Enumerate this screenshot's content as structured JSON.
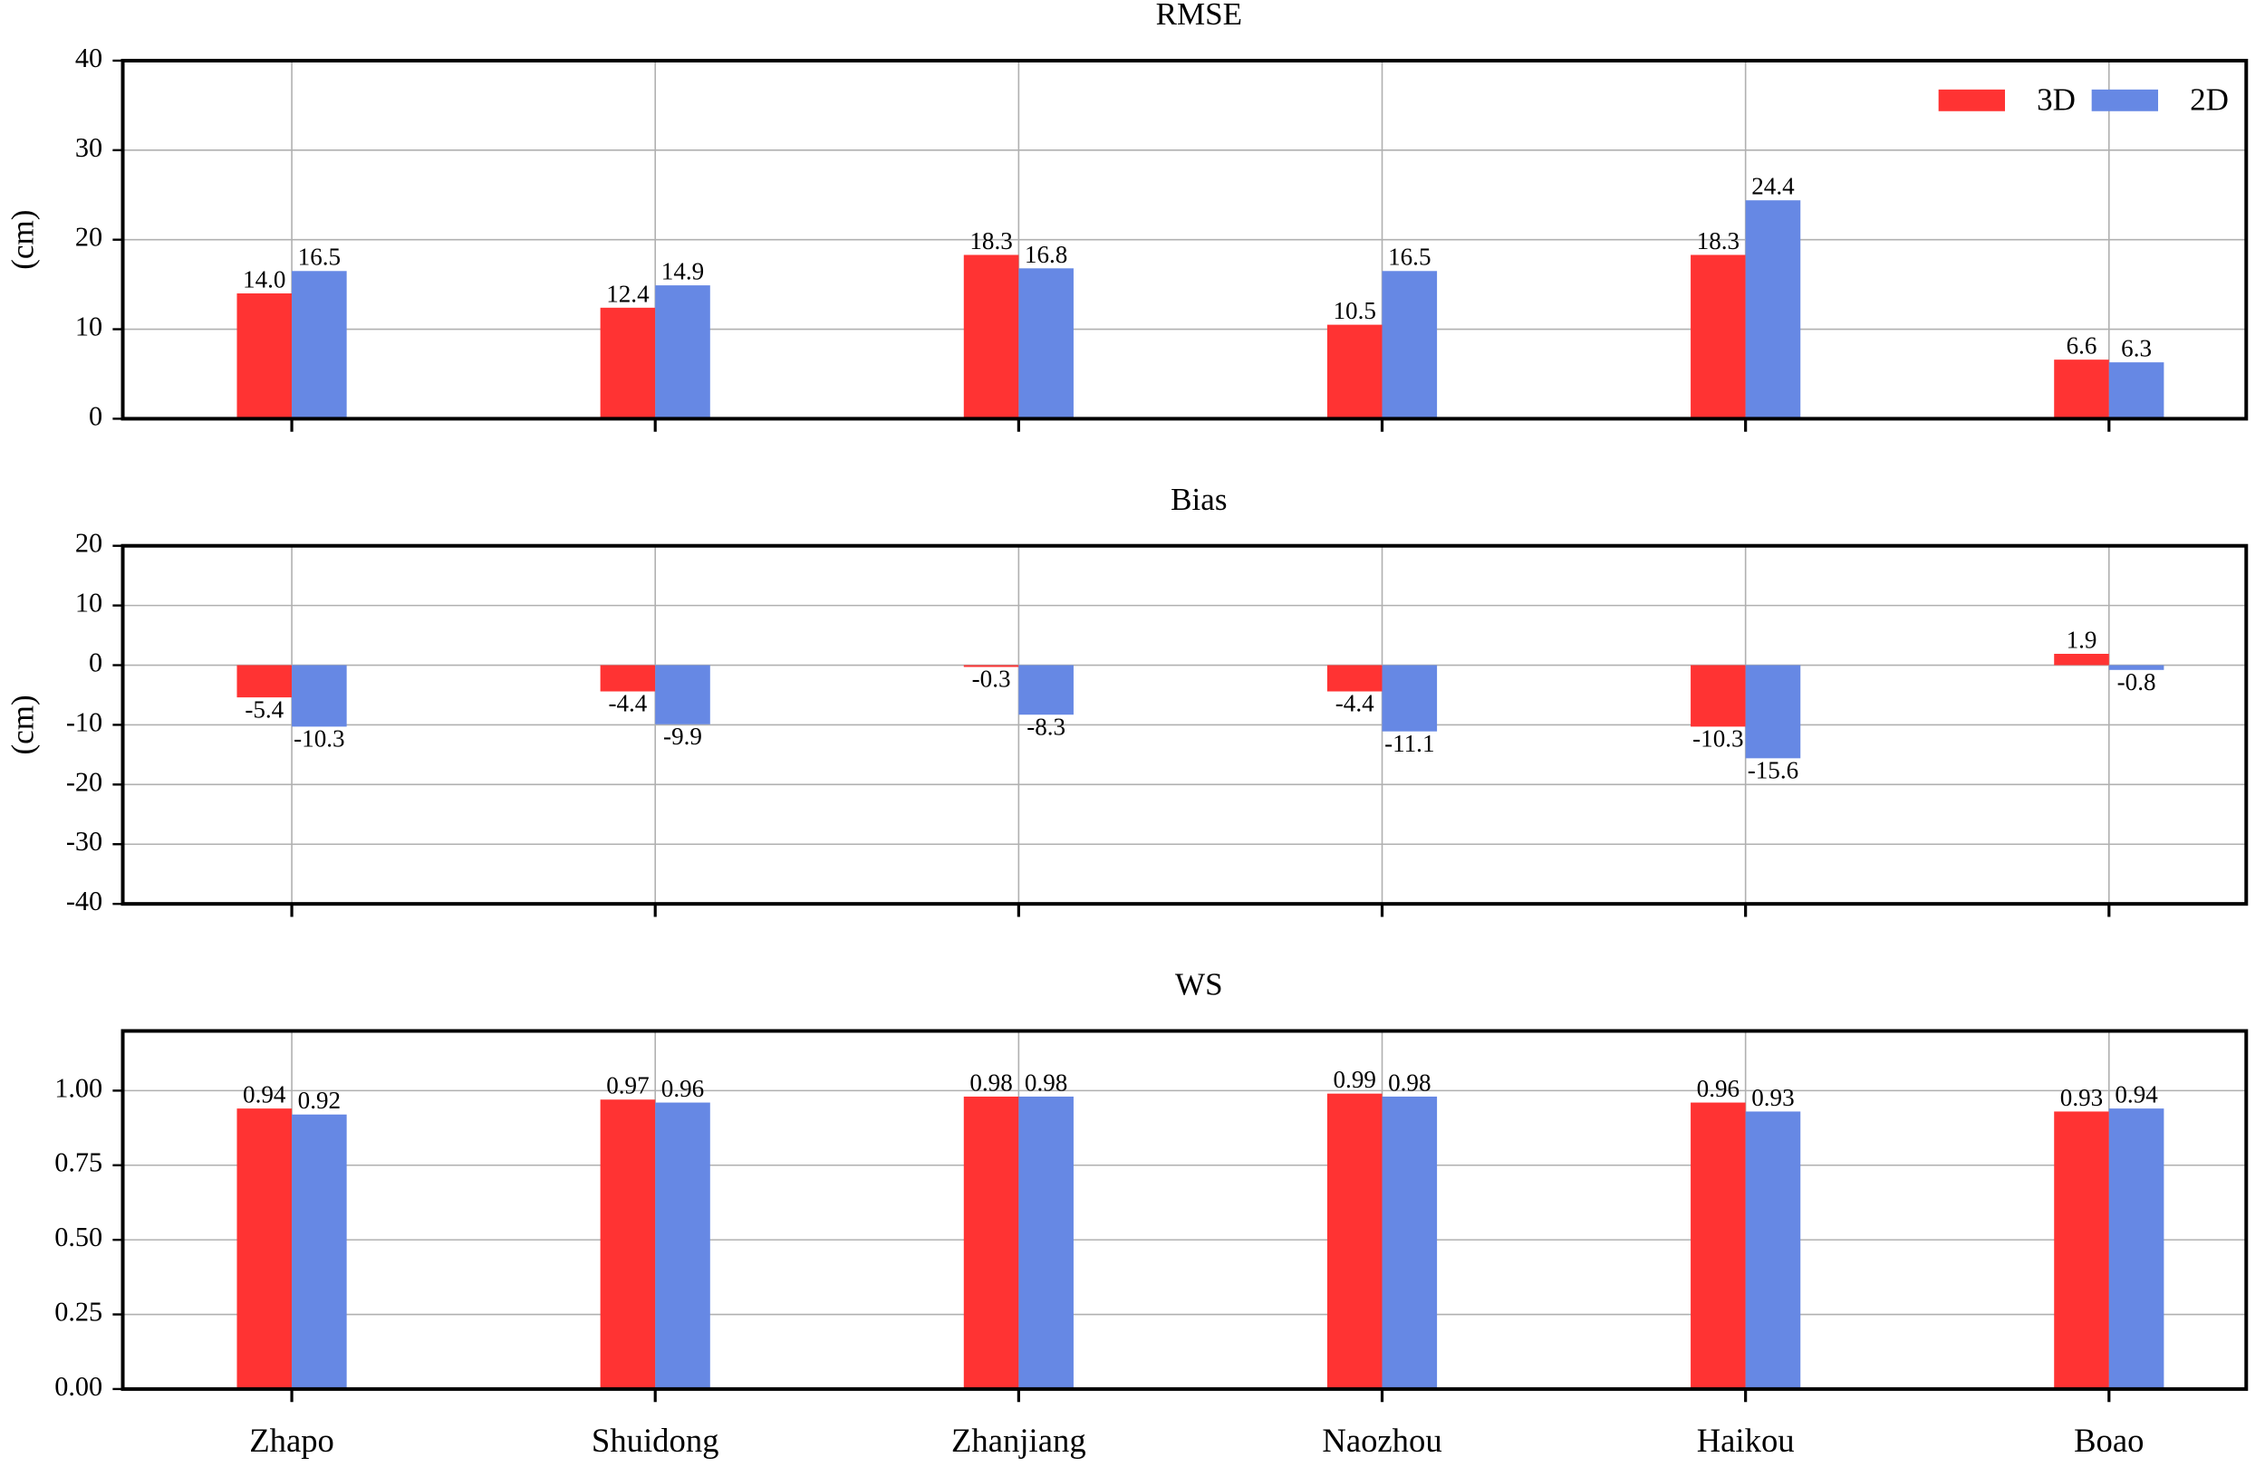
{
  "chart_data": [
    {
      "type": "bar",
      "title": "RMSE",
      "ylabel": "(cm)",
      "series": [
        {
          "name": "3D",
          "color": "#ff3333",
          "values": [
            14.0,
            12.4,
            18.3,
            10.5,
            18.3,
            6.6
          ],
          "value_labels": [
            "14.0",
            "12.4",
            "18.3",
            "10.5",
            "18.3",
            "6.6"
          ]
        },
        {
          "name": "2D",
          "color": "#6688e4",
          "values": [
            16.5,
            14.9,
            16.8,
            16.5,
            24.4,
            6.3
          ]
        }
      ],
      "ylim": [
        0,
        40
      ],
      "yticks": [
        0,
        10,
        20,
        30,
        40
      ],
      "grid": true,
      "legend": "upper right"
    },
    {
      "type": "bar",
      "title": "Bias",
      "ylabel": "(cm)",
      "series": [
        {
          "color": "#ff3333",
          "values": [
            -5.4,
            -4.4,
            -0.3,
            -4.4,
            -10.3,
            1.9
          ]
        },
        {
          "color": "#6688e4",
          "values": [
            -10.3,
            -9.9,
            -8.3,
            -11.1,
            -15.6,
            -0.8
          ]
        }
      ],
      "ylim": [
        -40,
        20
      ],
      "yticks": [
        -40,
        -30,
        -20,
        -10,
        0,
        10,
        20
      ],
      "grid": true
    },
    {
      "type": "bar",
      "title": "WS",
      "categories": [
        "Zhapo",
        "Shuidong",
        "Zhanjiang",
        "Naozhou",
        "Haikou",
        "Boao"
      ],
      "series": [
        {
          "color": "#ff3333",
          "values": [
            0.94,
            0.97,
            0.98,
            0.99,
            0.96,
            0.93
          ]
        },
        {
          "color": "#6688e4",
          "values": [
            0.92,
            0.96,
            0.98,
            0.98,
            0.93,
            0.94
          ]
        }
      ],
      "ylim": [
        0,
        1.2
      ],
      "yticks": [
        {
          "value": 0,
          "label": "0.00"
        },
        {
          "value": 0.25,
          "label": "0.25"
        },
        {
          "value": 0.5,
          "label": "0.50"
        },
        {
          "value": 0.75,
          "label": "0.75"
        },
        {
          "value": 1,
          "label": "1.00"
        }
      ],
      "grid": true
    }
  ]
}
